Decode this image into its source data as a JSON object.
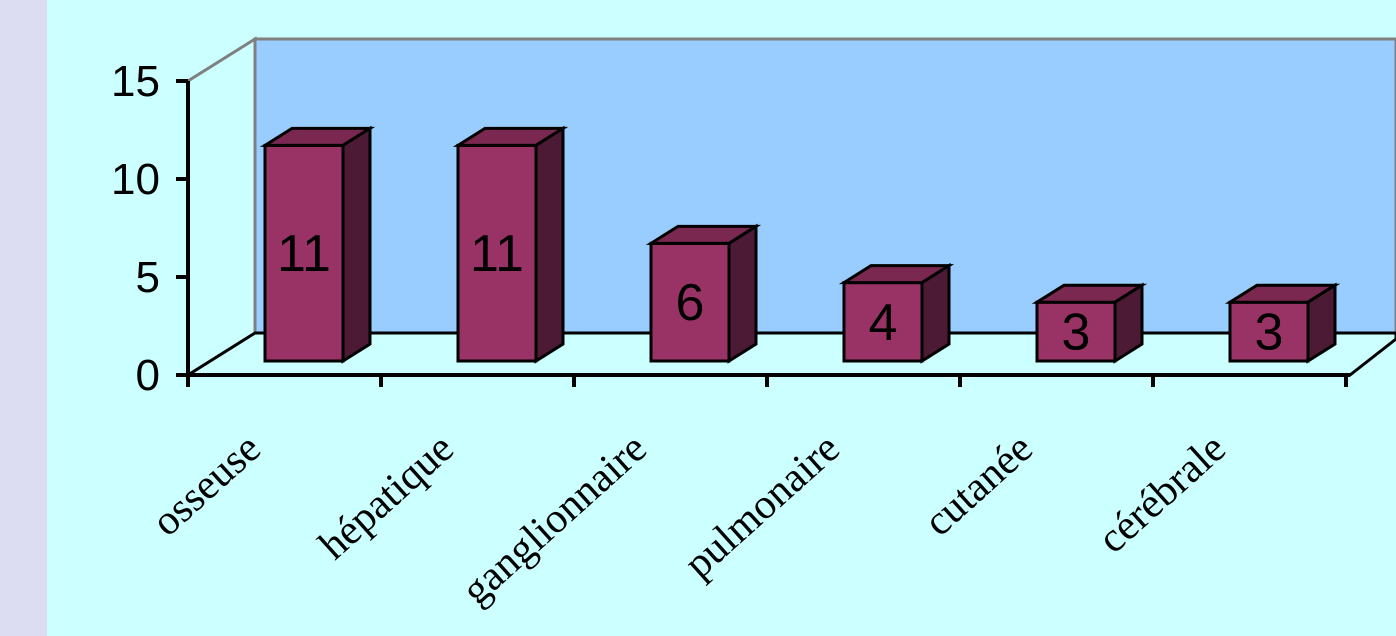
{
  "colors": {
    "background": "#ccffff",
    "plot_back_wall": "#99ccff",
    "bar_front": "#993366",
    "bar_top": "#7a2850",
    "bar_side": "#4d1a36"
  },
  "chart_data": {
    "type": "bar",
    "style": "3d-column",
    "categories": [
      "osseuse",
      "hépatique",
      "ganglionnaire",
      "pulmonaire",
      "cutanée",
      "cérébrale"
    ],
    "values": [
      11,
      11,
      6,
      4,
      3,
      3
    ],
    "data_labels": [
      "11",
      "11",
      "6",
      "4",
      "3",
      "3"
    ],
    "title": "",
    "xlabel": "",
    "ylabel": "",
    "ylim": [
      0,
      15
    ],
    "yticks": [
      0,
      5,
      10,
      15
    ],
    "ytick_labels": [
      "0",
      "5",
      "10",
      "15"
    ],
    "grid": false,
    "legend": "none"
  }
}
